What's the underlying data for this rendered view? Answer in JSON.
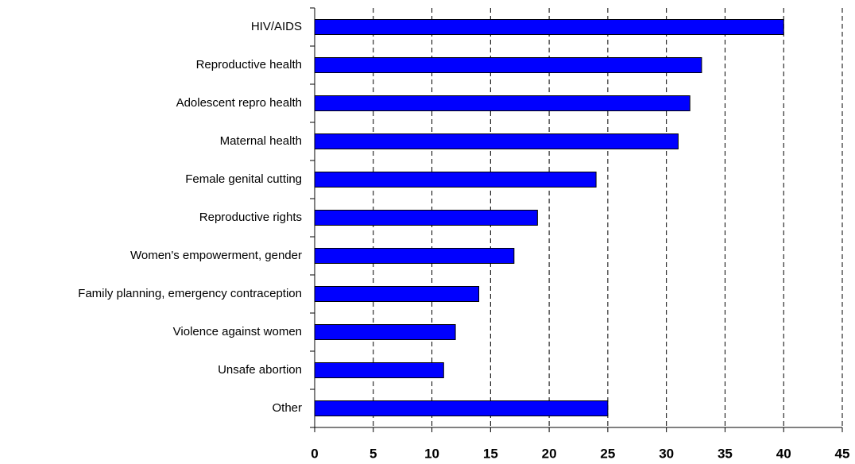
{
  "chart_data": {
    "type": "bar",
    "orientation": "horizontal",
    "categories": [
      "HIV/AIDS",
      "Reproductive health",
      "Adolescent repro health",
      "Maternal health",
      "Female genital cutting",
      "Reproductive rights",
      "Women's empowerment, gender",
      "Family planning, emergency contraception",
      "Violence against women",
      "Unsafe abortion",
      "Other"
    ],
    "values": [
      40,
      33,
      32,
      31,
      24,
      19,
      17,
      14,
      12,
      11,
      25
    ],
    "color": "#0000ff",
    "xlim": [
      0,
      45
    ],
    "xticks": [
      0,
      5,
      10,
      15,
      20,
      25,
      30,
      35,
      40,
      45
    ],
    "grid": true
  }
}
